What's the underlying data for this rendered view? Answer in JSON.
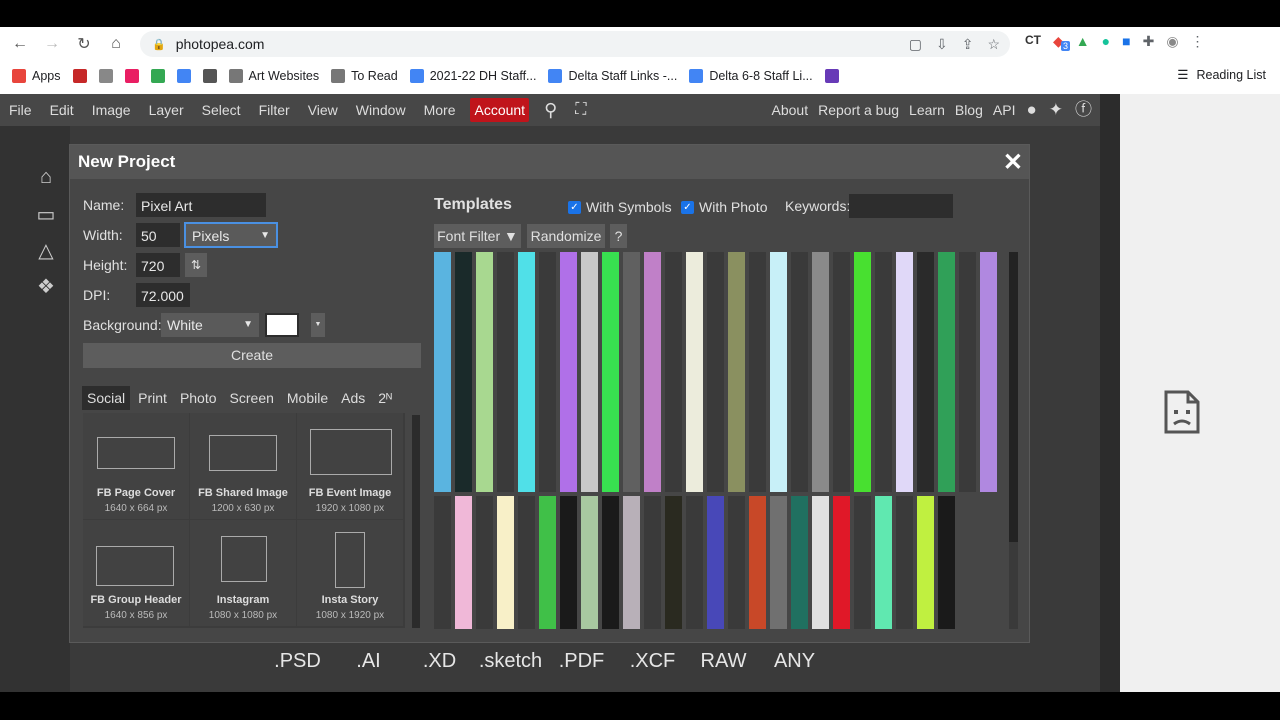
{
  "browser": {
    "url": "photopea.com",
    "bookmarks": [
      {
        "label": "Apps",
        "color": "#e8453c"
      },
      {
        "label": "",
        "color": "#c62828"
      },
      {
        "label": "",
        "color": "#888888"
      },
      {
        "label": "",
        "color": "#e91e63"
      },
      {
        "label": "",
        "color": "#34a853"
      },
      {
        "label": "",
        "color": "#4285f4"
      },
      {
        "label": "",
        "color": "#555555"
      },
      {
        "label": "Art Websites",
        "color": "#777777"
      },
      {
        "label": "To Read",
        "color": "#777777"
      },
      {
        "label": "2021-22 DH Staff...",
        "color": "#4285f4"
      },
      {
        "label": "Delta Staff Links -...",
        "color": "#4285f4"
      },
      {
        "label": "Delta 6-8 Staff Li...",
        "color": "#4285f4"
      },
      {
        "label": "",
        "color": "#673ab7"
      }
    ],
    "reading_list": "Reading List",
    "extension_badge": "3"
  },
  "menubar": {
    "left": [
      "File",
      "Edit",
      "Image",
      "Layer",
      "Select",
      "Filter",
      "View",
      "Window",
      "More"
    ],
    "account": "Account",
    "right": [
      "About",
      "Report a bug",
      "Learn",
      "Blog",
      "API"
    ]
  },
  "formats": [
    ".PSD",
    ".AI",
    ".XD",
    ".sketch",
    ".PDF",
    ".XCF",
    "RAW",
    "ANY"
  ],
  "dialog": {
    "title": "New Project",
    "name_label": "Name:",
    "name_value": "Pixel Art",
    "width_label": "Width:",
    "width_value": "50",
    "unit_value": "Pixels",
    "height_label": "Height:",
    "height_value": "720",
    "dpi_label": "DPI:",
    "dpi_value": "72.000",
    "background_label": "Background:",
    "background_value": "White",
    "create_label": "Create",
    "tabs": [
      "Social",
      "Print",
      "Photo",
      "Screen",
      "Mobile",
      "Ads",
      "2ᴺ"
    ],
    "presets": [
      {
        "name": "FB Page Cover",
        "size": "1640 x 664 px"
      },
      {
        "name": "FB Shared Image",
        "size": "1200 x 630 px"
      },
      {
        "name": "FB Event Image",
        "size": "1920 x 1080 px"
      },
      {
        "name": "FB Group Header",
        "size": "1640 x 856 px"
      },
      {
        "name": "Instagram",
        "size": "1080 x 1080 px"
      },
      {
        "name": "Insta Story",
        "size": "1080 x 1920 px"
      }
    ],
    "templates_label": "Templates",
    "with_symbols": "With Symbols",
    "with_photo": "With Photo",
    "keywords_label": "Keywords:",
    "font_filter": "Font Filter ▼",
    "randomize": "Randomize",
    "help": "?"
  },
  "template_colors_row1": [
    "#5ab4e0",
    "#1a2a2a",
    "#a8d890",
    "#3a3a3a",
    "#50e0e8",
    "#3a3a3a",
    "#b070e8",
    "#c8c8c8",
    "#38e050",
    "#606060",
    "#c080c8",
    "#3a3a3a",
    "#ececdc",
    "#3a3a3a",
    "#8a9060",
    "#3a3a3a",
    "#c8f0f8",
    "#3a3a3a",
    "#8a8a8a",
    "#3a3a3a",
    "#48e030",
    "#3a3a3a",
    "#e0d8f8",
    "#2a2a2a",
    "#30a058",
    "#3a3a3a",
    "#b088e0"
  ],
  "template_colors_row2": [
    "#3a3a3a",
    "#f0b8d8",
    "#3a3a3a",
    "#f8f0c8",
    "#3a3a3a",
    "#40c048",
    "#1a1a1a",
    "#a8c8a0",
    "#1a1a1a",
    "#b8b0b8",
    "#3a3a3a",
    "#2a2a20",
    "#3a3a3a",
    "#4848b8",
    "#3a3a3a",
    "#c84828",
    "#707070",
    "#207060",
    "#e0e0e0",
    "#e01828",
    "#3a3a3a",
    "#60e8b0",
    "#3a3a3a",
    "#c0f040",
    "#1a1a1a"
  ]
}
